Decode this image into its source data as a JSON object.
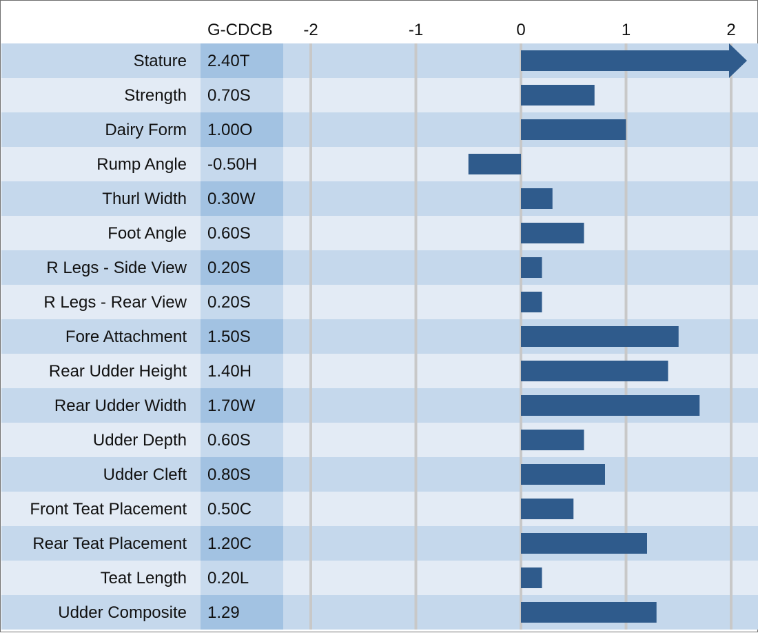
{
  "header": {
    "value_column_title": "G-CDCB"
  },
  "colors": {
    "row_dark": "#c5d8ec",
    "row_light": "#e3ebf5",
    "value_col_dark": "#a2c2e2",
    "value_col_light": "#c6d9ed",
    "bar": "#2f5b8c",
    "gridline": "#c8c8c8",
    "border": "#6f6f6f"
  },
  "chart_data": {
    "type": "bar",
    "orientation": "horizontal",
    "x_ticks": [
      -2,
      -1,
      0,
      1,
      2
    ],
    "xlim": [
      -2,
      2.15
    ],
    "grid": "vertical",
    "categories": [
      "Stature",
      "Strength",
      "Dairy Form",
      "Rump Angle",
      "Thurl Width",
      "Foot Angle",
      "R Legs - Side View",
      "R Legs - Rear View",
      "Fore Attachment",
      "Rear Udder Height",
      "Rear Udder Width",
      "Udder Depth",
      "Udder Cleft",
      "Front Teat Placement",
      "Rear Teat Placement",
      "Teat Length",
      "Udder Composite"
    ],
    "value_labels": [
      "2.40T",
      "0.70S",
      "1.00O",
      "-0.50H",
      "0.30W",
      "0.60S",
      "0.20S",
      "0.20S",
      "1.50S",
      "1.40H",
      "1.70W",
      "0.60S",
      "0.80S",
      "0.50C",
      "1.20C",
      "0.20L",
      "1.29"
    ],
    "values": [
      2.4,
      0.7,
      1.0,
      -0.5,
      0.3,
      0.6,
      0.2,
      0.2,
      1.5,
      1.4,
      1.7,
      0.6,
      0.8,
      0.5,
      1.2,
      0.2,
      1.29
    ],
    "overflow_arrow": [
      true,
      false,
      false,
      false,
      false,
      false,
      false,
      false,
      false,
      false,
      false,
      false,
      false,
      false,
      false,
      false,
      false
    ]
  }
}
